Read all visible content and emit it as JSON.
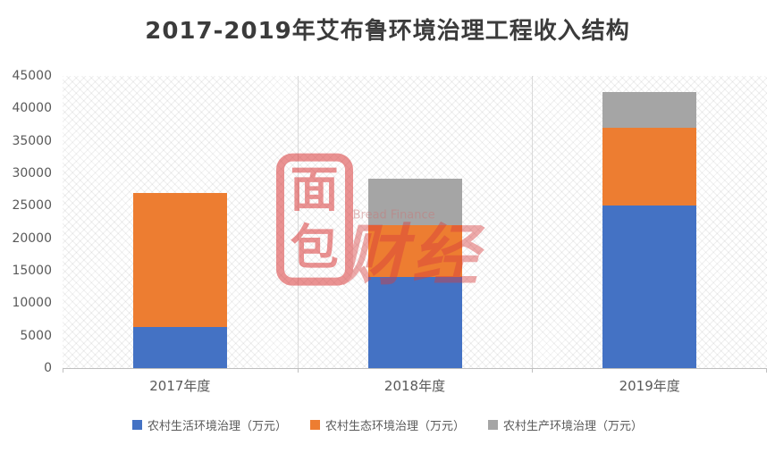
{
  "chart_data": {
    "type": "bar",
    "subtype": "stacked-column",
    "title": "2017-2019年艾布鲁环境治理工程收入结构",
    "categories": [
      "2017年度",
      "2018年度",
      "2019年度"
    ],
    "series": [
      {
        "name": "农村生活环境治理（万元）",
        "color": "#4472C4",
        "values": [
          6400,
          14000,
          25000
        ]
      },
      {
        "name": "农村生态环境治理（万元）",
        "color": "#ED7D31",
        "values": [
          20600,
          8000,
          12000
        ]
      },
      {
        "name": "农村生产环境治理（万元）",
        "color": "#A5A5A5",
        "values": [
          0,
          7200,
          5500
        ]
      }
    ],
    "ylim": [
      0,
      45000
    ],
    "ytick_interval": 5000,
    "grid": "vertical-category-separators",
    "legend_position": "bottom",
    "plot_background": "diagonal-crosshatch"
  },
  "watermark": {
    "logo_top": "面",
    "logo_bottom": "包",
    "brand_text": "Bread Finance",
    "name_text": "财经",
    "color": "#d93a3a"
  }
}
